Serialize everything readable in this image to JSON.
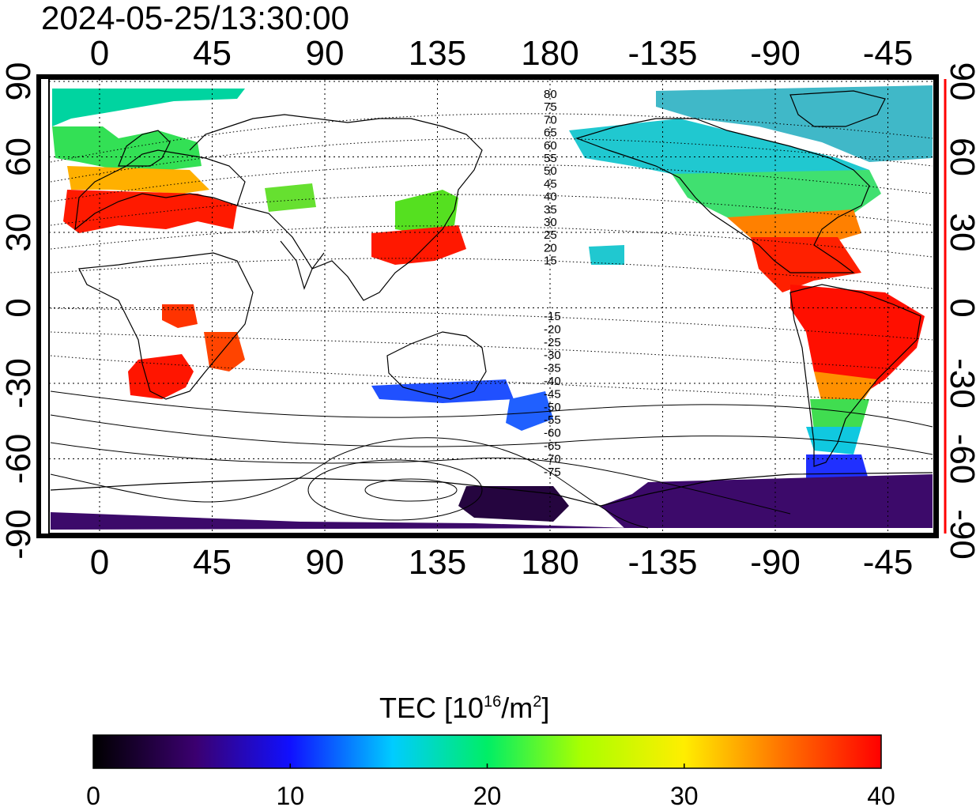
{
  "title": "2024-05-25/13:30:00",
  "map": {
    "lon_ticks": [
      "0",
      "45",
      "90",
      "135",
      "180",
      "-135",
      "-90",
      "-45"
    ],
    "lat_ticks_left": [
      "90",
      "60",
      "30",
      "0",
      "-30",
      "-60",
      "-90"
    ],
    "lat_ticks_right": [
      "90",
      "60",
      "30",
      "0",
      "-30",
      "-60",
      "-90"
    ],
    "right_axis_color": "#ff0000",
    "grid": "dotted",
    "contour_labels_north": [
      "80",
      "75",
      "70",
      "65",
      "60",
      "55",
      "50",
      "45",
      "40",
      "35",
      "30",
      "25",
      "20",
      "15"
    ],
    "contour_labels_south": [
      "-15",
      "-20",
      "-25",
      "-30",
      "-35",
      "-40",
      "-45",
      "-50",
      "-55",
      "-60",
      "-65",
      "-70",
      "-75"
    ]
  },
  "colorbar": {
    "title_main": "TEC  [10",
    "title_sup": "16",
    "title_unit": "/m",
    "title_sup2": "2",
    "title_end": "]",
    "ticks": [
      "0",
      "10",
      "20",
      "30",
      "40"
    ],
    "min": 0,
    "max": 40,
    "colors": [
      "#000000",
      "#4b0082",
      "#0000ff",
      "#00ffff",
      "#00ff00",
      "#ffff00",
      "#ff0000"
    ]
  }
}
